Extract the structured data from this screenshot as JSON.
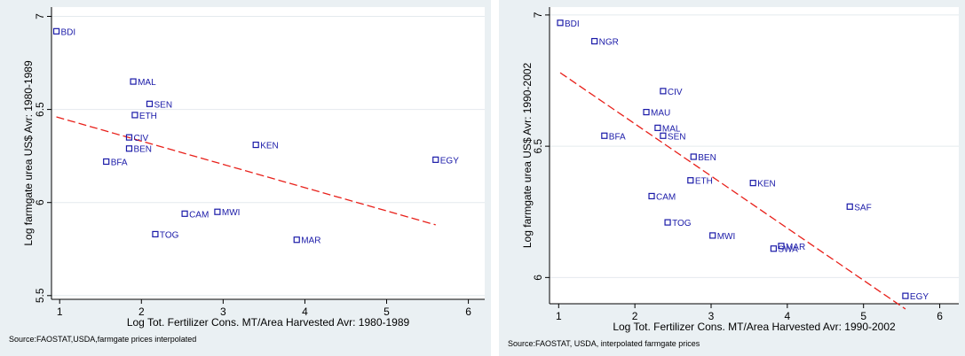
{
  "chart_data": [
    {
      "type": "scatter",
      "title": "",
      "xlabel": "Log Tot. Fertilizer Cons. MT/Area Harvested Avr: 1980-1989",
      "ylabel": "Log farmgate urea US$ Avr: 1980-1989",
      "note": "Source:FAOSTAT,USDA,farmgate prices interpolated",
      "xlim": [
        0.9,
        6.2
      ],
      "ylim": [
        5.48,
        7.05
      ],
      "xticks": [
        1,
        2,
        3,
        4,
        5,
        6
      ],
      "yticks": [
        5.5,
        6,
        6.5,
        7
      ],
      "ytick_labels": [
        "5.5",
        "6",
        "6.5",
        "7"
      ],
      "grid": true,
      "legend": "none",
      "marker_color": "#1a1aa8",
      "fit_color": "#e8201a",
      "background": "#eaf0f3",
      "points": [
        {
          "label": "BDI",
          "x": 0.96,
          "y": 6.92
        },
        {
          "label": "MAL",
          "x": 1.9,
          "y": 6.65
        },
        {
          "label": "SEN",
          "x": 2.1,
          "y": 6.53
        },
        {
          "label": "ETH",
          "x": 1.92,
          "y": 6.47
        },
        {
          "label": "CIV",
          "x": 1.85,
          "y": 6.35
        },
        {
          "label": "BEN",
          "x": 1.85,
          "y": 6.29
        },
        {
          "label": "BFA",
          "x": 1.57,
          "y": 6.22
        },
        {
          "label": "KEN",
          "x": 3.4,
          "y": 6.31
        },
        {
          "label": "EGY",
          "x": 5.6,
          "y": 6.23
        },
        {
          "label": "CAM",
          "x": 2.53,
          "y": 5.94
        },
        {
          "label": "MWI",
          "x": 2.93,
          "y": 5.95
        },
        {
          "label": "TOG",
          "x": 2.17,
          "y": 5.83
        },
        {
          "label": "MAR",
          "x": 3.9,
          "y": 5.8
        }
      ],
      "fit_line": {
        "x": [
          0.96,
          5.6
        ],
        "y": [
          6.46,
          5.88
        ]
      }
    },
    {
      "type": "scatter",
      "title": "",
      "xlabel": "Log Tot. Fertilizer Cons. MT/Area Harvested Avr: 1990-2002",
      "ylabel": "Log farmgate urea US$ Avr: 1990-2002",
      "note": "Source:FAOSTAT, USDA, interpolated farmgate prices",
      "xlim": [
        0.88,
        6.25
      ],
      "ylim": [
        5.9,
        7.03
      ],
      "xticks": [
        1,
        2,
        3,
        4,
        5,
        6
      ],
      "yticks": [
        6,
        6.5,
        7
      ],
      "ytick_labels": [
        "6",
        "6.5",
        "7"
      ],
      "grid": true,
      "legend": "none",
      "marker_color": "#1a1aa8",
      "fit_color": "#e8201a",
      "background": "#eaf0f3",
      "points": [
        {
          "label": "BDI",
          "x": 1.02,
          "y": 6.97
        },
        {
          "label": "NGR",
          "x": 1.47,
          "y": 6.9
        },
        {
          "label": "CIV",
          "x": 2.37,
          "y": 6.71
        },
        {
          "label": "MAU",
          "x": 2.15,
          "y": 6.63
        },
        {
          "label": "MAL",
          "x": 2.3,
          "y": 6.57
        },
        {
          "label": "SEN",
          "x": 2.37,
          "y": 6.54
        },
        {
          "label": "BFA",
          "x": 1.6,
          "y": 6.54
        },
        {
          "label": "BEN",
          "x": 2.77,
          "y": 6.46
        },
        {
          "label": "ETH",
          "x": 2.73,
          "y": 6.37
        },
        {
          "label": "KEN",
          "x": 3.55,
          "y": 6.36
        },
        {
          "label": "CAM",
          "x": 2.22,
          "y": 6.31
        },
        {
          "label": "SAF",
          "x": 4.82,
          "y": 6.27
        },
        {
          "label": "TOG",
          "x": 2.43,
          "y": 6.21
        },
        {
          "label": "MWI",
          "x": 3.02,
          "y": 6.16
        },
        {
          "label": "MAR",
          "x": 3.92,
          "y": 6.12
        },
        {
          "label": "SWA",
          "x": 3.82,
          "y": 6.11
        },
        {
          "label": "EGY",
          "x": 5.55,
          "y": 5.93
        }
      ],
      "fit_line": {
        "x": [
          1.02,
          5.55
        ],
        "y": [
          6.78,
          5.88
        ]
      }
    }
  ]
}
